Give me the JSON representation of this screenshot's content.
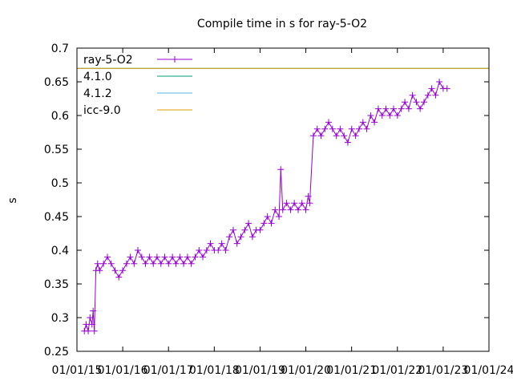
{
  "chart_data": {
    "type": "line",
    "title": "Compile time in s for ray-5-O2",
    "xlabel": "",
    "ylabel": "s",
    "ylim": [
      0.25,
      0.7
    ],
    "xlim": [
      "2015-01-01",
      "2024-01-01"
    ],
    "yticks": [
      "0.25",
      "0.3",
      "0.35",
      "0.4",
      "0.45",
      "0.5",
      "0.55",
      "0.6",
      "0.65",
      "0.7"
    ],
    "xticks": [
      "01/01/15",
      "01/01/16",
      "01/01/17",
      "01/01/18",
      "01/01/19",
      "01/01/20",
      "01/01/21",
      "01/01/22",
      "01/01/23",
      "01/01/24"
    ],
    "legend_position": "top-left",
    "series": [
      {
        "name": "ray-5-O2",
        "color": "#9400d3",
        "marker": "plus",
        "x": [
          "2015-03-01",
          "2015-03-15",
          "2015-04-01",
          "2015-04-15",
          "2015-05-01",
          "2015-05-10",
          "2015-05-20",
          "2015-06-01",
          "2015-06-15",
          "2015-07-01",
          "2015-08-01",
          "2015-09-01",
          "2015-10-01",
          "2015-11-01",
          "2015-12-01",
          "2016-01-01",
          "2016-02-01",
          "2016-03-01",
          "2016-04-01",
          "2016-05-01",
          "2016-06-01",
          "2016-07-01",
          "2016-08-01",
          "2016-09-01",
          "2016-10-01",
          "2016-11-01",
          "2016-12-01",
          "2017-01-01",
          "2017-02-01",
          "2017-03-01",
          "2017-04-01",
          "2017-05-01",
          "2017-06-01",
          "2017-07-01",
          "2017-08-01",
          "2017-09-01",
          "2017-10-01",
          "2017-11-01",
          "2017-12-01",
          "2018-01-01",
          "2018-02-01",
          "2018-03-01",
          "2018-04-01",
          "2018-05-01",
          "2018-06-01",
          "2018-07-01",
          "2018-08-01",
          "2018-09-01",
          "2018-10-01",
          "2018-11-01",
          "2018-12-01",
          "2019-01-01",
          "2019-02-01",
          "2019-03-01",
          "2019-04-01",
          "2019-05-01",
          "2019-06-01",
          "2019-06-15",
          "2019-07-01",
          "2019-08-01",
          "2019-09-01",
          "2019-10-01",
          "2019-11-01",
          "2019-12-01",
          "2020-01-01",
          "2020-01-20",
          "2020-02-01",
          "2020-03-01",
          "2020-04-01",
          "2020-05-01",
          "2020-06-01",
          "2020-07-01",
          "2020-08-01",
          "2020-09-01",
          "2020-10-01",
          "2020-11-01",
          "2020-12-01",
          "2021-01-01",
          "2021-02-01",
          "2021-03-01",
          "2021-04-01",
          "2021-05-01",
          "2021-06-01",
          "2021-07-01",
          "2021-08-01",
          "2021-09-01",
          "2021-10-01",
          "2021-11-01",
          "2021-12-01",
          "2022-01-01",
          "2022-02-01",
          "2022-03-01",
          "2022-04-01",
          "2022-05-01",
          "2022-06-01",
          "2022-07-01",
          "2022-08-01",
          "2022-09-01",
          "2022-10-01",
          "2022-11-01",
          "2022-12-01",
          "2023-01-01",
          "2023-02-01"
        ],
        "y": [
          0.28,
          0.29,
          0.28,
          0.3,
          0.29,
          0.31,
          0.28,
          0.37,
          0.38,
          0.37,
          0.38,
          0.39,
          0.38,
          0.37,
          0.36,
          0.37,
          0.38,
          0.39,
          0.38,
          0.4,
          0.39,
          0.38,
          0.39,
          0.38,
          0.39,
          0.38,
          0.39,
          0.38,
          0.39,
          0.38,
          0.39,
          0.38,
          0.39,
          0.38,
          0.39,
          0.4,
          0.39,
          0.4,
          0.41,
          0.4,
          0.4,
          0.41,
          0.4,
          0.42,
          0.43,
          0.41,
          0.42,
          0.43,
          0.44,
          0.42,
          0.43,
          0.43,
          0.44,
          0.45,
          0.44,
          0.46,
          0.45,
          0.52,
          0.46,
          0.47,
          0.46,
          0.47,
          0.46,
          0.47,
          0.46,
          0.48,
          0.47,
          0.57,
          0.58,
          0.57,
          0.58,
          0.59,
          0.58,
          0.57,
          0.58,
          0.57,
          0.56,
          0.58,
          0.57,
          0.58,
          0.59,
          0.58,
          0.6,
          0.59,
          0.61,
          0.6,
          0.61,
          0.6,
          0.61,
          0.6,
          0.61,
          0.62,
          0.61,
          0.63,
          0.62,
          0.61,
          0.62,
          0.63,
          0.64,
          0.63,
          0.65,
          0.64,
          0.64
        ]
      },
      {
        "name": "4.1.0",
        "color": "#009e73",
        "value": 0.67
      },
      {
        "name": "4.1.2",
        "color": "#56b4e9",
        "value": 0.67
      },
      {
        "name": "icc-9.0",
        "color": "#e69f00",
        "value": 0.67
      }
    ]
  }
}
